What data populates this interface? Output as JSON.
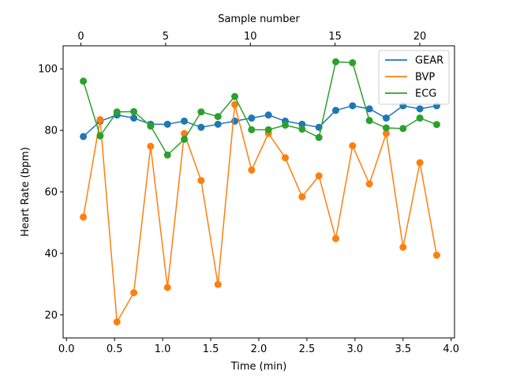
{
  "chart_data": {
    "type": "line",
    "xlabel": "Time (min)",
    "ylabel": "Heart Rate (bpm)",
    "top_xlabel": "Sample number",
    "xlim": [
      -0.035,
      4.035
    ],
    "ylim": [
      12.5,
      107.5
    ],
    "top_xlim": [
      -1.05,
      22.05
    ],
    "x_ticks": [
      0.0,
      0.5,
      1.0,
      1.5,
      2.0,
      2.5,
      3.0,
      3.5,
      4.0
    ],
    "x_tick_labels": [
      "0.0",
      "0.5",
      "1.0",
      "1.5",
      "2.0",
      "2.5",
      "3.0",
      "3.5",
      "4.0"
    ],
    "y_ticks": [
      20,
      40,
      60,
      80,
      100
    ],
    "y_tick_labels": [
      "20",
      "40",
      "60",
      "80",
      "100"
    ],
    "top_x_ticks": [
      0,
      5,
      10,
      15,
      20
    ],
    "top_x_tick_labels": [
      "0",
      "5",
      "10",
      "15",
      "20"
    ],
    "legend_position": "top-right",
    "x": [
      0.175,
      0.35,
      0.525,
      0.7,
      0.875,
      1.05,
      1.225,
      1.4,
      1.575,
      1.75,
      1.925,
      2.1,
      2.275,
      2.45,
      2.625,
      2.8,
      2.975,
      3.15,
      3.325,
      3.5,
      3.675,
      3.85
    ],
    "series": [
      {
        "name": "GEAR",
        "color": "#1f77b4",
        "values": [
          78,
          83,
          85,
          84,
          82,
          82,
          83,
          81,
          82,
          83,
          84,
          85,
          83,
          82,
          81,
          86.5,
          88,
          87,
          84,
          88,
          87,
          88
        ]
      },
      {
        "name": "BVP",
        "color": "#ff7f0e",
        "values": [
          51.8,
          83.5,
          17.7,
          27.2,
          74.8,
          28.9,
          79,
          63.7,
          29.9,
          88.4,
          67.1,
          79,
          71.1,
          58.4,
          65.2,
          44.8,
          75,
          62.6,
          79,
          42,
          69.5,
          39.4
        ]
      },
      {
        "name": "ECG",
        "color": "#2ca02c",
        "values": [
          96,
          78.2,
          86,
          86.1,
          81.4,
          72,
          77.1,
          86,
          84.5,
          91,
          80.2,
          80.2,
          81.7,
          80.4,
          77.7,
          102.3,
          102,
          83.2,
          80.8,
          80.6,
          84,
          81.9
        ]
      }
    ]
  }
}
